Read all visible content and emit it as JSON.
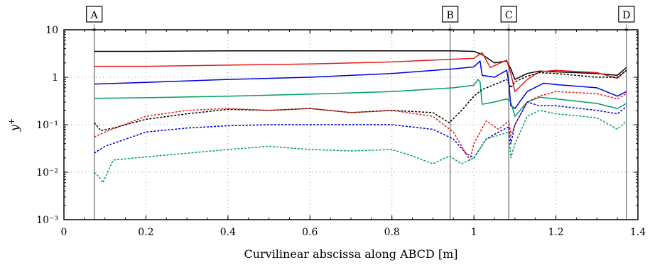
{
  "chart_data": {
    "type": "line",
    "xlabel": "Curvilinear abscissa along ABCD [m]",
    "ylabel": "y+",
    "x_scale": "linear",
    "y_scale": "log",
    "xlim": [
      0,
      1.4
    ],
    "ylim": [
      0.001,
      10
    ],
    "x_ticks": [
      "0",
      "0.2",
      "0.4",
      "0.6",
      "0.8",
      "1",
      "1.2",
      "1.4"
    ],
    "x_tick_values": [
      0,
      0.2,
      0.4,
      0.6,
      0.8,
      1.0,
      1.2,
      1.4
    ],
    "y_ticks": [
      "10⁻³",
      "10⁻²",
      "10⁻¹",
      "1",
      "10"
    ],
    "y_tick_values": [
      0.001,
      0.01,
      0.1,
      1,
      10
    ],
    "grid": "dotted",
    "markers": [
      {
        "label": "A",
        "x": 0.074
      },
      {
        "label": "B",
        "x": 0.942
      },
      {
        "label": "C",
        "x": 1.085
      },
      {
        "label": "D",
        "x": 1.372
      }
    ],
    "series": [
      {
        "color": "#000000",
        "style": "solid",
        "x": [
          0.074,
          0.2,
          0.4,
          0.6,
          0.8,
          0.95,
          1.0,
          1.02,
          1.05,
          1.08,
          1.09,
          1.1,
          1.13,
          1.16,
          1.2,
          1.3,
          1.35,
          1.372
        ],
        "y": [
          3.5,
          3.5,
          3.6,
          3.6,
          3.6,
          3.6,
          3.5,
          3.0,
          2.0,
          2.2,
          1.5,
          0.9,
          1.2,
          1.35,
          1.3,
          1.2,
          1.1,
          1.6
        ]
      },
      {
        "color": "#e41a1c",
        "style": "solid",
        "x": [
          0.074,
          0.2,
          0.4,
          0.6,
          0.8,
          0.95,
          1.0,
          1.02,
          1.04,
          1.08,
          1.09,
          1.1,
          1.13,
          1.16,
          1.2,
          1.3,
          1.35,
          1.372
        ],
        "y": [
          1.7,
          1.7,
          1.8,
          1.9,
          2.1,
          2.4,
          2.5,
          3.3,
          1.6,
          2.3,
          1.2,
          0.5,
          0.9,
          1.3,
          1.4,
          1.25,
          0.95,
          1.4
        ]
      },
      {
        "color": "#0000dd",
        "style": "solid",
        "x": [
          0.074,
          0.2,
          0.4,
          0.6,
          0.8,
          0.95,
          1.0,
          1.015,
          1.02,
          1.05,
          1.08,
          1.085,
          1.09,
          1.1,
          1.13,
          1.17,
          1.2,
          1.3,
          1.35,
          1.372
        ],
        "y": [
          0.72,
          0.78,
          0.9,
          1.0,
          1.2,
          1.5,
          1.65,
          2.2,
          1.1,
          1.0,
          1.4,
          0.8,
          0.25,
          0.22,
          0.5,
          0.75,
          0.7,
          0.6,
          0.4,
          0.5
        ]
      },
      {
        "color": "#009e60",
        "style": "solid",
        "x": [
          0.074,
          0.2,
          0.4,
          0.6,
          0.8,
          0.95,
          1.0,
          1.01,
          1.015,
          1.02,
          1.05,
          1.08,
          1.09,
          1.1,
          1.13,
          1.16,
          1.2,
          1.3,
          1.35,
          1.372
        ],
        "y": [
          0.36,
          0.37,
          0.4,
          0.44,
          0.5,
          0.6,
          0.68,
          0.9,
          0.8,
          0.27,
          0.3,
          0.35,
          0.3,
          0.15,
          0.3,
          0.38,
          0.35,
          0.28,
          0.22,
          0.28
        ]
      },
      {
        "color": "#000000",
        "style": "dashed",
        "x": [
          0.074,
          0.09,
          0.12,
          0.2,
          0.3,
          0.4,
          0.5,
          0.6,
          0.7,
          0.8,
          0.9,
          0.94,
          0.97,
          1.0,
          1.02,
          1.05,
          1.08,
          1.09,
          1.1,
          1.13,
          1.16,
          1.2,
          1.3,
          1.35,
          1.372
        ],
        "y": [
          0.11,
          0.075,
          0.085,
          0.13,
          0.17,
          0.21,
          0.2,
          0.22,
          0.18,
          0.2,
          0.18,
          0.11,
          0.2,
          0.4,
          0.55,
          0.7,
          0.9,
          0.6,
          0.8,
          1.05,
          1.25,
          1.2,
          1.0,
          1.0,
          1.4
        ]
      },
      {
        "color": "#e41a1c",
        "style": "dashed",
        "x": [
          0.074,
          0.1,
          0.2,
          0.3,
          0.4,
          0.5,
          0.6,
          0.7,
          0.8,
          0.9,
          0.95,
          0.99,
          1.0,
          1.03,
          1.06,
          1.085,
          1.09,
          1.1,
          1.13,
          1.16,
          1.2,
          1.3,
          1.35,
          1.372
        ],
        "y": [
          0.055,
          0.07,
          0.15,
          0.2,
          0.22,
          0.2,
          0.22,
          0.18,
          0.2,
          0.15,
          0.07,
          0.018,
          0.04,
          0.12,
          0.08,
          0.12,
          0.06,
          0.1,
          0.3,
          0.4,
          0.5,
          0.45,
          0.35,
          0.45
        ]
      },
      {
        "color": "#0000dd",
        "style": "dashed",
        "x": [
          0.074,
          0.1,
          0.2,
          0.3,
          0.4,
          0.5,
          0.6,
          0.7,
          0.8,
          0.9,
          0.95,
          0.98,
          1.0,
          1.03,
          1.06,
          1.085,
          1.09,
          1.1,
          1.13,
          1.16,
          1.2,
          1.3,
          1.35,
          1.372
        ],
        "y": [
          0.025,
          0.035,
          0.07,
          0.085,
          0.095,
          0.1,
          0.1,
          0.1,
          0.1,
          0.08,
          0.05,
          0.025,
          0.02,
          0.05,
          0.07,
          0.09,
          0.04,
          0.1,
          0.3,
          0.25,
          0.25,
          0.2,
          0.17,
          0.24
        ]
      },
      {
        "color": "#009e60",
        "style": "dashed",
        "x": [
          0.074,
          0.085,
          0.095,
          0.12,
          0.2,
          0.3,
          0.4,
          0.5,
          0.6,
          0.7,
          0.8,
          0.85,
          0.9,
          0.94,
          0.97,
          1.0,
          1.03,
          1.06,
          1.085,
          1.09,
          1.1,
          1.13,
          1.16,
          1.2,
          1.3,
          1.35,
          1.372
        ],
        "y": [
          0.01,
          0.008,
          0.006,
          0.018,
          0.021,
          0.025,
          0.03,
          0.035,
          0.03,
          0.028,
          0.03,
          0.022,
          0.015,
          0.022,
          0.015,
          0.02,
          0.05,
          0.06,
          0.07,
          0.02,
          0.04,
          0.15,
          0.2,
          0.17,
          0.14,
          0.08,
          0.12
        ]
      }
    ]
  }
}
